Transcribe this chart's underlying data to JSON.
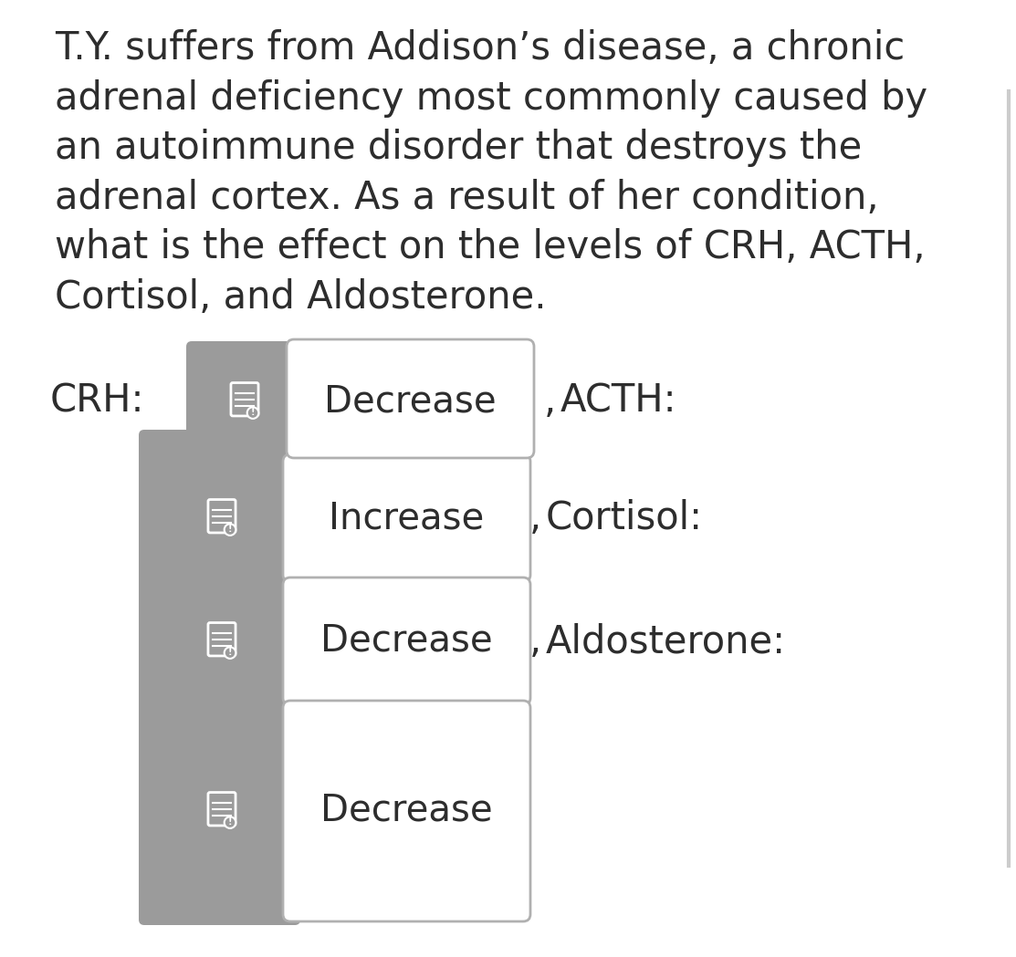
{
  "bg_color": "#ffffff",
  "title_text": "T.Y. suffers from Addison’s disease, a chronic\nadrenal deficiency most commonly caused by\nan autoimmune disorder that destroys the\nadrenal cortex. As a result of her condition,\nwhat is the effect on the levels of CRH, ACTH,\nCortisol, and Aldosterone.",
  "title_fontsize": 30,
  "title_color": "#2d2d2d",
  "gray_color": "#9b9b9b",
  "white_color": "#ffffff",
  "box_border_color": "#b0b0b0",
  "answers": [
    "Decrease",
    "Increase",
    "Decrease",
    "Decrease"
  ],
  "side_labels": [
    "ACTH:",
    "Cortisol:",
    "Aldosterone:",
    null
  ],
  "left_label": "CRH:"
}
